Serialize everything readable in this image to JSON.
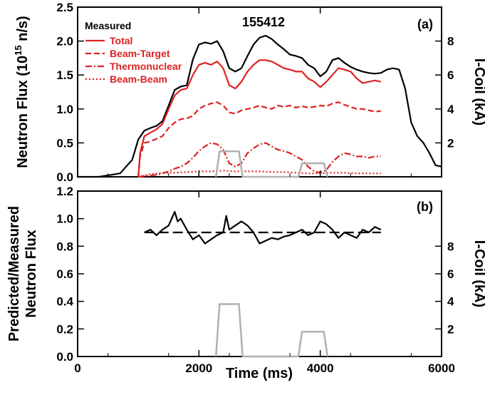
{
  "chart_data": [
    {
      "type": "line",
      "panel_label": "(a)",
      "annotation": "155412",
      "xlabel": "Time (ms)",
      "xlim": [
        0,
        6000
      ],
      "xticks": [
        "0",
        "2000",
        "4000",
        "6000"
      ],
      "ylabel": "Neutron Flux (10",
      "ylabel_sup": "15",
      "ylabel_tail": " n/s)",
      "ylim": [
        0,
        2.5
      ],
      "yticks": [
        "0.0",
        "0.5",
        "1.0",
        "1.5",
        "2.0",
        "2.5"
      ],
      "y2label": "I-Coil (kA)",
      "y2lim": [
        0,
        10
      ],
      "y2ticks": [
        "2",
        "4",
        "6",
        "8"
      ],
      "legend_title": "Measured",
      "series": [
        {
          "name": "Measured",
          "color": "#000000",
          "style": "solid",
          "axis": "left",
          "x": [
            0,
            350,
            700,
            900,
            1000,
            1100,
            1200,
            1300,
            1400,
            1500,
            1600,
            1700,
            1800,
            1900,
            2000,
            2100,
            2200,
            2300,
            2400,
            2500,
            2600,
            2700,
            2800,
            2900,
            3000,
            3100,
            3200,
            3300,
            3400,
            3500,
            3600,
            3700,
            3800,
            3900,
            4000,
            4100,
            4200,
            4300,
            4400,
            4500,
            4600,
            4700,
            4800,
            4900,
            5000,
            5100,
            5200,
            5300,
            5400,
            5500,
            5600,
            5700,
            5800,
            5900,
            6000
          ],
          "y": [
            0.0,
            0.0,
            0.05,
            0.25,
            0.55,
            0.68,
            0.72,
            0.75,
            0.82,
            1.05,
            1.28,
            1.33,
            1.35,
            1.73,
            1.95,
            1.98,
            1.96,
            2.0,
            1.85,
            1.6,
            1.55,
            1.6,
            1.78,
            1.95,
            2.05,
            2.08,
            2.03,
            1.95,
            1.88,
            1.8,
            1.78,
            1.75,
            1.65,
            1.6,
            1.48,
            1.55,
            1.72,
            1.75,
            1.68,
            1.62,
            1.58,
            1.55,
            1.53,
            1.52,
            1.53,
            1.58,
            1.6,
            1.58,
            1.3,
            0.8,
            0.6,
            0.5,
            0.35,
            0.17,
            0.15
          ]
        },
        {
          "name": "Total",
          "color": "#dd2222",
          "style": "solid",
          "axis": "left",
          "x": [
            1000,
            1030,
            1100,
            1200,
            1300,
            1400,
            1500,
            1600,
            1700,
            1800,
            1900,
            2000,
            2100,
            2200,
            2300,
            2400,
            2500,
            2600,
            2700,
            2800,
            2900,
            3000,
            3100,
            3200,
            3300,
            3400,
            3500,
            3600,
            3700,
            3800,
            3900,
            4000,
            4100,
            4200,
            4300,
            4400,
            4500,
            4600,
            4700,
            4800,
            4900,
            5000
          ],
          "y": [
            0.0,
            0.35,
            0.6,
            0.65,
            0.7,
            0.78,
            1.0,
            1.2,
            1.28,
            1.3,
            1.5,
            1.65,
            1.68,
            1.65,
            1.7,
            1.6,
            1.35,
            1.3,
            1.4,
            1.55,
            1.65,
            1.72,
            1.72,
            1.7,
            1.65,
            1.6,
            1.58,
            1.55,
            1.55,
            1.45,
            1.4,
            1.32,
            1.4,
            1.5,
            1.6,
            1.58,
            1.55,
            1.45,
            1.38,
            1.4,
            1.42,
            1.4
          ]
        },
        {
          "name": "Beam-Target",
          "color": "#dd2222",
          "style": "dashed",
          "axis": "left",
          "x": [
            1000,
            1030,
            1100,
            1200,
            1300,
            1400,
            1500,
            1600,
            1700,
            1800,
            1900,
            2000,
            2100,
            2200,
            2300,
            2400,
            2500,
            2600,
            2700,
            2800,
            2900,
            3000,
            3100,
            3200,
            3300,
            3400,
            3500,
            3600,
            3700,
            3800,
            3900,
            4000,
            4100,
            4200,
            4300,
            4400,
            4500,
            4600,
            4700,
            4800,
            4900,
            5000
          ],
          "y": [
            0.0,
            0.3,
            0.5,
            0.52,
            0.56,
            0.6,
            0.72,
            0.8,
            0.85,
            0.86,
            0.9,
            1.0,
            1.05,
            1.08,
            1.1,
            1.05,
            0.95,
            0.93,
            0.98,
            1.0,
            1.02,
            1.05,
            1.02,
            1.0,
            1.05,
            1.03,
            1.05,
            1.02,
            1.04,
            1.02,
            1.03,
            1.05,
            1.04,
            1.08,
            1.1,
            1.06,
            1.03,
            1.0,
            1.0,
            0.98,
            0.96,
            0.97
          ]
        },
        {
          "name": "Thermonuclear",
          "color": "#dd2222",
          "style": "dashdot",
          "axis": "left",
          "x": [
            1000,
            1100,
            1200,
            1300,
            1400,
            1500,
            1600,
            1700,
            1800,
            1900,
            2000,
            2100,
            2200,
            2300,
            2400,
            2500,
            2600,
            2700,
            2800,
            2900,
            3000,
            3100,
            3200,
            3300,
            3400,
            3500,
            3600,
            3700,
            3800,
            3900,
            4000,
            4100,
            4200,
            4300,
            4400,
            4500,
            4600,
            4700,
            4800,
            4900,
            5000
          ],
          "y": [
            0.0,
            0.01,
            0.02,
            0.03,
            0.05,
            0.08,
            0.12,
            0.15,
            0.2,
            0.28,
            0.38,
            0.45,
            0.5,
            0.48,
            0.4,
            0.2,
            0.15,
            0.2,
            0.35,
            0.42,
            0.48,
            0.5,
            0.45,
            0.4,
            0.38,
            0.35,
            0.3,
            0.25,
            0.15,
            0.08,
            0.06,
            0.1,
            0.22,
            0.3,
            0.35,
            0.33,
            0.3,
            0.3,
            0.28,
            0.3,
            0.3
          ]
        },
        {
          "name": "Beam-Beam",
          "color": "#dd2222",
          "style": "dotted",
          "axis": "left",
          "x": [
            1000,
            1200,
            1400,
            1600,
            1800,
            2000,
            2200,
            2400,
            2600,
            2800,
            3000,
            3200,
            3400,
            3600,
            3800,
            4000,
            4200,
            4400,
            4600,
            4800,
            5000
          ],
          "y": [
            0.0,
            0.04,
            0.06,
            0.06,
            0.07,
            0.08,
            0.08,
            0.09,
            0.08,
            0.08,
            0.08,
            0.07,
            0.07,
            0.06,
            0.05,
            0.05,
            0.06,
            0.06,
            0.05,
            0.05,
            0.05
          ]
        },
        {
          "name": "",
          "color": "#b0b0b0",
          "style": "solid",
          "axis": "right",
          "x": [
            2280,
            2340,
            2660,
            2720,
            3640,
            3700,
            4060,
            4120
          ],
          "y": [
            0,
            1.5,
            1.5,
            0,
            0,
            0.8,
            0.8,
            0
          ]
        }
      ]
    },
    {
      "type": "line",
      "panel_label": "(b)",
      "xlabel": "Time (ms)",
      "xlim": [
        0,
        6000
      ],
      "xticks": [
        "0",
        "2000",
        "4000",
        "6000"
      ],
      "ylabel_line1": "Predicted/Measured",
      "ylabel_line2": "Neutron Flux",
      "ylim": [
        0,
        1.2
      ],
      "yticks": [
        "0.0",
        "0.2",
        "0.4",
        "0.6",
        "0.8",
        "1.0",
        "1.2"
      ],
      "y2label": "I-Coil (kA)",
      "y2lim": [
        0,
        12
      ],
      "y2ticks": [
        "2",
        "4",
        "6",
        "8"
      ],
      "series": [
        {
          "name": "",
          "color": "#000000",
          "style": "solid",
          "axis": "left",
          "x": [
            1100,
            1200,
            1300,
            1400,
            1500,
            1600,
            1650,
            1700,
            1800,
            1900,
            2000,
            2100,
            2200,
            2300,
            2400,
            2450,
            2500,
            2600,
            2700,
            2800,
            2900,
            3000,
            3100,
            3200,
            3300,
            3400,
            3500,
            3600,
            3700,
            3800,
            3900,
            4000,
            4100,
            4200,
            4300,
            4400,
            4500,
            4600,
            4700,
            4800,
            4900,
            5000
          ],
          "y": [
            0.9,
            0.92,
            0.88,
            0.92,
            0.95,
            1.05,
            0.98,
            1.0,
            0.92,
            0.85,
            0.88,
            0.82,
            0.85,
            0.88,
            0.9,
            1.02,
            0.92,
            0.95,
            0.98,
            0.95,
            0.9,
            0.82,
            0.84,
            0.86,
            0.85,
            0.87,
            0.88,
            0.9,
            0.92,
            0.88,
            0.9,
            0.98,
            0.96,
            0.92,
            0.86,
            0.9,
            0.88,
            0.86,
            0.92,
            0.9,
            0.94,
            0.92
          ]
        },
        {
          "name": "",
          "color": "#000000",
          "style": "longdash",
          "axis": "left",
          "x": [
            1100,
            5000
          ],
          "y": [
            0.9,
            0.9
          ]
        },
        {
          "name": "",
          "color": "#b0b0b0",
          "style": "solid",
          "axis": "right",
          "x": [
            2280,
            2340,
            2660,
            2720,
            3640,
            3700,
            4060,
            4120
          ],
          "y": [
            0,
            3.8,
            3.8,
            0,
            0,
            1.8,
            1.8,
            0
          ]
        }
      ]
    }
  ]
}
